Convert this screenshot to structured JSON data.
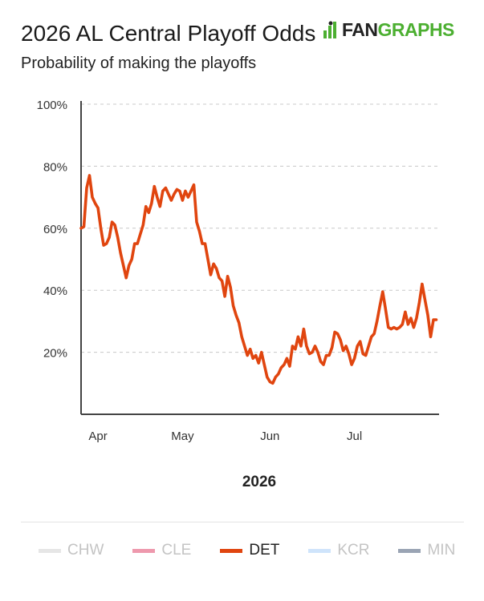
{
  "header": {
    "title": "2026 AL Central Playoff Odds",
    "subtitle": "Probability of making the playoffs",
    "logo_fan": "FAN",
    "logo_graphs": "GRAPHS"
  },
  "colors": {
    "accent": "#e0450f",
    "grid": "#c8c8c8",
    "axis": "#444444",
    "logo_green": "#4caf31"
  },
  "legend": [
    {
      "name": "CHW",
      "color": "#e6e6e6",
      "text_color": "#c4c4c4"
    },
    {
      "name": "CLE",
      "color": "#ee99ad",
      "text_color": "#c4c4c4"
    },
    {
      "name": "DET",
      "color": "#e0450f",
      "text_color": "#222222"
    },
    {
      "name": "KCR",
      "color": "#cfe4fb",
      "text_color": "#c4c4c4"
    },
    {
      "name": "MIN",
      "color": "#9aa4b4",
      "text_color": "#c4c4c4"
    }
  ],
  "chart_data": {
    "type": "line",
    "title": "2026 AL Central Playoff Odds",
    "subtitle": "Probability of making the playoffs",
    "xlabel": "2026",
    "ylabel": "",
    "x_range": [
      "2026-03-26",
      "2026-07-31"
    ],
    "ylim": [
      0,
      100
    ],
    "y_ticks": [
      20,
      40,
      60,
      80,
      100
    ],
    "y_tick_labels": [
      "20%",
      "40%",
      "60%",
      "80%",
      "100%"
    ],
    "x_ticks": [
      "2026-04-01",
      "2026-05-01",
      "2026-06-01",
      "2026-07-01"
    ],
    "x_tick_labels": [
      "Apr",
      "May",
      "Jun",
      "Jul"
    ],
    "grid": true,
    "legend_position": "bottom",
    "series": [
      {
        "name": "DET",
        "color": "#e0450f",
        "points": [
          [
            "2026-03-26",
            60
          ],
          [
            "2026-03-27",
            60.5
          ],
          [
            "2026-03-28",
            73
          ],
          [
            "2026-03-29",
            77
          ],
          [
            "2026-03-30",
            70
          ],
          [
            "2026-03-31",
            68
          ],
          [
            "2026-04-01",
            66.5
          ],
          [
            "2026-04-02",
            60
          ],
          [
            "2026-04-03",
            54.5
          ],
          [
            "2026-04-04",
            55
          ],
          [
            "2026-04-05",
            57
          ],
          [
            "2026-04-06",
            62
          ],
          [
            "2026-04-07",
            61
          ],
          [
            "2026-04-08",
            57
          ],
          [
            "2026-04-09",
            52
          ],
          [
            "2026-04-10",
            48
          ],
          [
            "2026-04-11",
            44
          ],
          [
            "2026-04-12",
            48
          ],
          [
            "2026-04-13",
            50
          ],
          [
            "2026-04-14",
            55
          ],
          [
            "2026-04-15",
            55
          ],
          [
            "2026-04-16",
            58
          ],
          [
            "2026-04-17",
            61
          ],
          [
            "2026-04-18",
            67
          ],
          [
            "2026-04-19",
            65
          ],
          [
            "2026-04-20",
            68
          ],
          [
            "2026-04-21",
            73.5
          ],
          [
            "2026-04-22",
            70
          ],
          [
            "2026-04-23",
            67
          ],
          [
            "2026-04-24",
            72
          ],
          [
            "2026-04-25",
            73
          ],
          [
            "2026-04-26",
            71
          ],
          [
            "2026-04-27",
            69
          ],
          [
            "2026-04-28",
            71
          ],
          [
            "2026-04-29",
            72.5
          ],
          [
            "2026-04-30",
            72
          ],
          [
            "2026-05-01",
            69
          ],
          [
            "2026-05-02",
            72
          ],
          [
            "2026-05-03",
            70
          ],
          [
            "2026-05-04",
            72
          ],
          [
            "2026-05-05",
            74
          ],
          [
            "2026-05-06",
            62
          ],
          [
            "2026-05-07",
            59
          ],
          [
            "2026-05-08",
            55
          ],
          [
            "2026-05-09",
            55
          ],
          [
            "2026-05-10",
            50
          ],
          [
            "2026-05-11",
            45
          ],
          [
            "2026-05-12",
            48.5
          ],
          [
            "2026-05-13",
            47
          ],
          [
            "2026-05-14",
            44
          ],
          [
            "2026-05-15",
            43
          ],
          [
            "2026-05-16",
            38
          ],
          [
            "2026-05-17",
            44.5
          ],
          [
            "2026-05-18",
            41
          ],
          [
            "2026-05-19",
            35
          ],
          [
            "2026-05-20",
            32
          ],
          [
            "2026-05-21",
            29.5
          ],
          [
            "2026-05-22",
            25
          ],
          [
            "2026-05-23",
            22
          ],
          [
            "2026-05-24",
            19
          ],
          [
            "2026-05-25",
            21
          ],
          [
            "2026-05-26",
            18
          ],
          [
            "2026-05-27",
            19
          ],
          [
            "2026-05-28",
            16.5
          ],
          [
            "2026-05-29",
            20
          ],
          [
            "2026-05-30",
            16
          ],
          [
            "2026-05-31",
            12
          ],
          [
            "2026-06-01",
            10.5
          ],
          [
            "2026-06-02",
            10
          ],
          [
            "2026-06-03",
            12
          ],
          [
            "2026-06-04",
            13
          ],
          [
            "2026-06-05",
            15
          ],
          [
            "2026-06-06",
            16
          ],
          [
            "2026-06-07",
            18
          ],
          [
            "2026-06-08",
            15.5
          ],
          [
            "2026-06-09",
            22
          ],
          [
            "2026-06-10",
            21
          ],
          [
            "2026-06-11",
            25
          ],
          [
            "2026-06-12",
            22
          ],
          [
            "2026-06-13",
            27.5
          ],
          [
            "2026-06-14",
            22
          ],
          [
            "2026-06-15",
            19.5
          ],
          [
            "2026-06-16",
            20
          ],
          [
            "2026-06-17",
            22
          ],
          [
            "2026-06-18",
            20
          ],
          [
            "2026-06-19",
            17
          ],
          [
            "2026-06-20",
            16
          ],
          [
            "2026-06-21",
            19
          ],
          [
            "2026-06-22",
            19
          ],
          [
            "2026-06-23",
            21.5
          ],
          [
            "2026-06-24",
            26.5
          ],
          [
            "2026-06-25",
            26
          ],
          [
            "2026-06-26",
            24
          ],
          [
            "2026-06-27",
            20.5
          ],
          [
            "2026-06-28",
            22
          ],
          [
            "2026-06-29",
            19.5
          ],
          [
            "2026-06-30",
            16
          ],
          [
            "2026-07-01",
            18
          ],
          [
            "2026-07-02",
            22
          ],
          [
            "2026-07-03",
            23.5
          ],
          [
            "2026-07-04",
            19.5
          ],
          [
            "2026-07-05",
            19
          ],
          [
            "2026-07-06",
            22
          ],
          [
            "2026-07-07",
            25
          ],
          [
            "2026-07-08",
            26
          ],
          [
            "2026-07-09",
            30
          ],
          [
            "2026-07-10",
            35
          ],
          [
            "2026-07-11",
            39.5
          ],
          [
            "2026-07-12",
            34
          ],
          [
            "2026-07-13",
            28
          ],
          [
            "2026-07-14",
            27.5
          ],
          [
            "2026-07-15",
            28
          ],
          [
            "2026-07-16",
            27.5
          ],
          [
            "2026-07-17",
            28
          ],
          [
            "2026-07-18",
            29
          ],
          [
            "2026-07-19",
            33
          ],
          [
            "2026-07-20",
            29
          ],
          [
            "2026-07-21",
            31
          ],
          [
            "2026-07-22",
            28
          ],
          [
            "2026-07-23",
            31
          ],
          [
            "2026-07-24",
            36
          ],
          [
            "2026-07-25",
            42
          ],
          [
            "2026-07-26",
            37
          ],
          [
            "2026-07-27",
            32
          ],
          [
            "2026-07-28",
            25
          ],
          [
            "2026-07-29",
            30.5
          ],
          [
            "2026-07-30",
            30.5
          ]
        ]
      }
    ]
  }
}
